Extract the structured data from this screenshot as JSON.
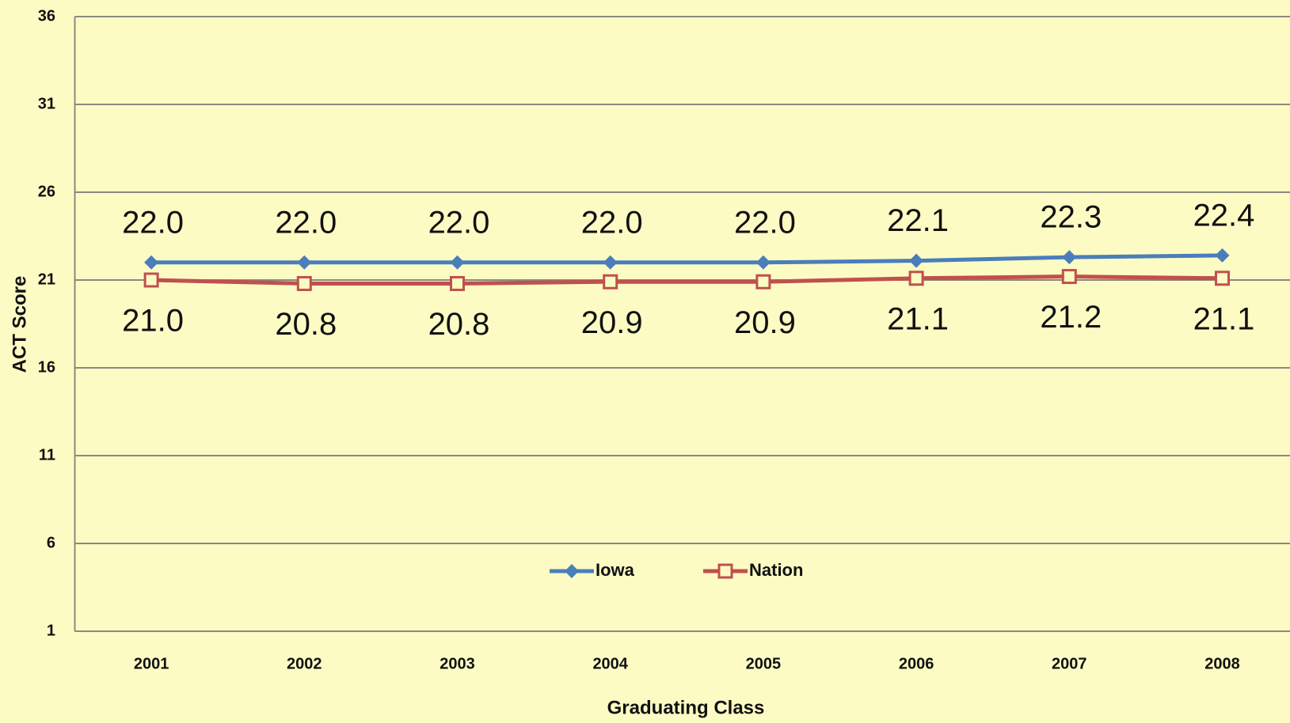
{
  "chart_data": {
    "type": "line",
    "x_label": "Graduating Class",
    "y_label": "ACT Score",
    "categories": [
      "2001",
      "2002",
      "2003",
      "2004",
      "2005",
      "2006",
      "2007",
      "2008"
    ],
    "series": [
      {
        "name": "Iowa",
        "color": "#4a7ebb",
        "marker": "diamond",
        "values": [
          22.0,
          22.0,
          22.0,
          22.0,
          22.0,
          22.1,
          22.3,
          22.4
        ],
        "value_labels": [
          "22.0",
          "22.0",
          "22.0",
          "22.0",
          "22.0",
          "22.1",
          "22.3",
          "22.4"
        ]
      },
      {
        "name": "Nation",
        "color": "#c0504d",
        "marker": "square",
        "values": [
          21.0,
          20.8,
          20.8,
          20.9,
          20.9,
          21.1,
          21.2,
          21.1
        ],
        "value_labels": [
          "21.0",
          "20.8",
          "20.8",
          "20.9",
          "20.9",
          "21.1",
          "21.2",
          "21.1"
        ]
      }
    ],
    "ylim": [
      1,
      36
    ],
    "yticks": [
      1,
      6,
      11,
      16,
      21,
      26,
      31,
      36
    ],
    "grid": true,
    "legend": "bottom"
  }
}
